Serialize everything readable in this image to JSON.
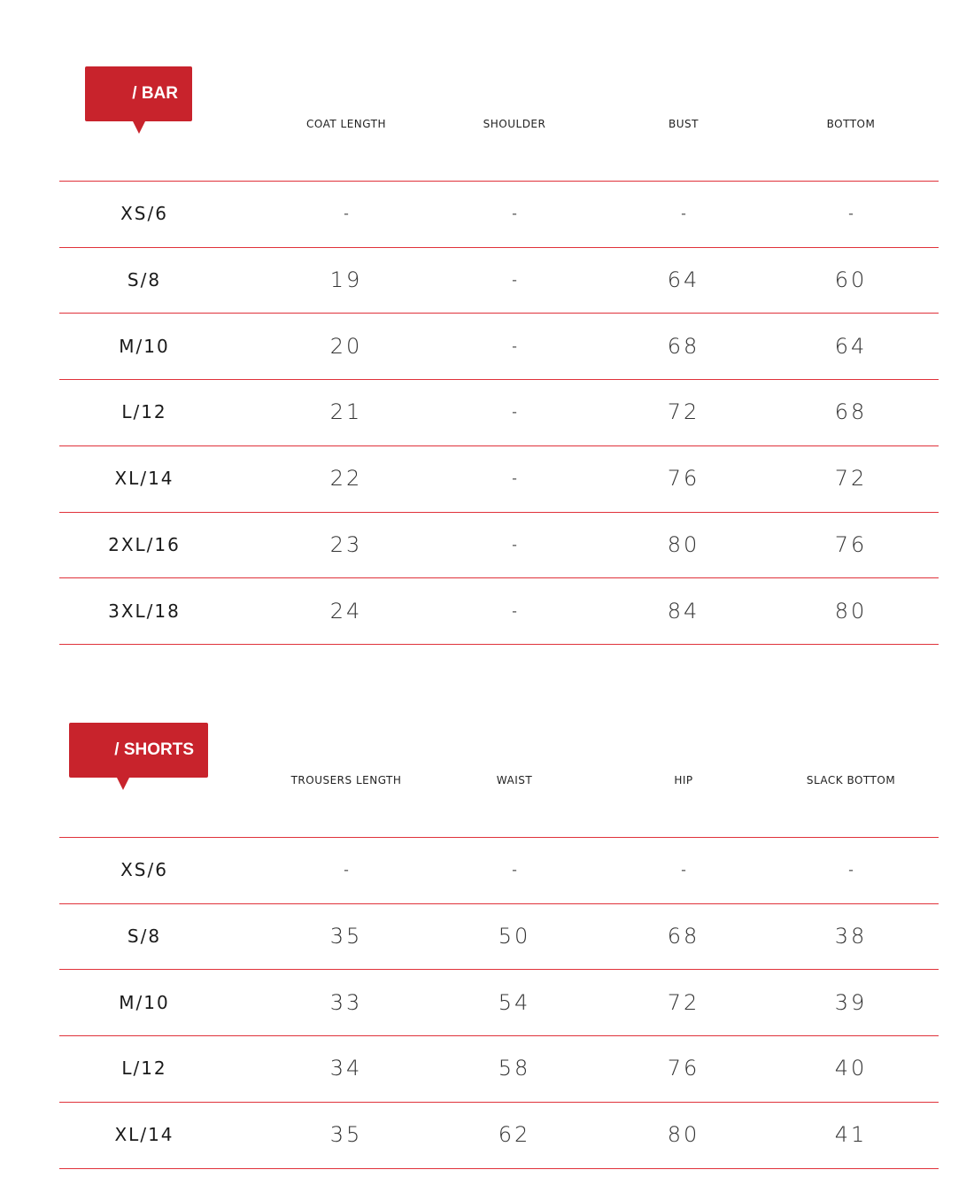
{
  "colors": {
    "accent": "#c8232c"
  },
  "tables": [
    {
      "title": "/ BAR",
      "headers": [
        "COAT LENGTH",
        "SHOULDER",
        "BUST",
        "BOTTOM"
      ],
      "rows": [
        {
          "size": "XS/6",
          "values": [
            "-",
            "-",
            "-",
            "-"
          ]
        },
        {
          "size": "S/8",
          "values": [
            "19",
            "-",
            "64",
            "60"
          ]
        },
        {
          "size": "M/10",
          "values": [
            "20",
            "-",
            "68",
            "64"
          ]
        },
        {
          "size": "L/12",
          "values": [
            "21",
            "-",
            "72",
            "68"
          ]
        },
        {
          "size": "XL/14",
          "values": [
            "22",
            "-",
            "76",
            "72"
          ]
        },
        {
          "size": "2XL/16",
          "values": [
            "23",
            "-",
            "80",
            "76"
          ]
        },
        {
          "size": "3XL/18",
          "values": [
            "24",
            "-",
            "84",
            "80"
          ]
        }
      ]
    },
    {
      "title": "/ SHORTS",
      "headers": [
        "TROUSERS LENGTH",
        "WAIST",
        "HIP",
        "SLACK BOTTOM"
      ],
      "rows": [
        {
          "size": "XS/6",
          "values": [
            "-",
            "-",
            "-",
            "-"
          ]
        },
        {
          "size": "S/8",
          "values": [
            "35",
            "50",
            "68",
            "38"
          ]
        },
        {
          "size": "M/10",
          "values": [
            "33",
            "54",
            "72",
            "39"
          ]
        },
        {
          "size": "L/12",
          "values": [
            "34",
            "58",
            "76",
            "40"
          ]
        },
        {
          "size": "XL/14",
          "values": [
            "35",
            "62",
            "80",
            "41"
          ]
        }
      ]
    }
  ]
}
